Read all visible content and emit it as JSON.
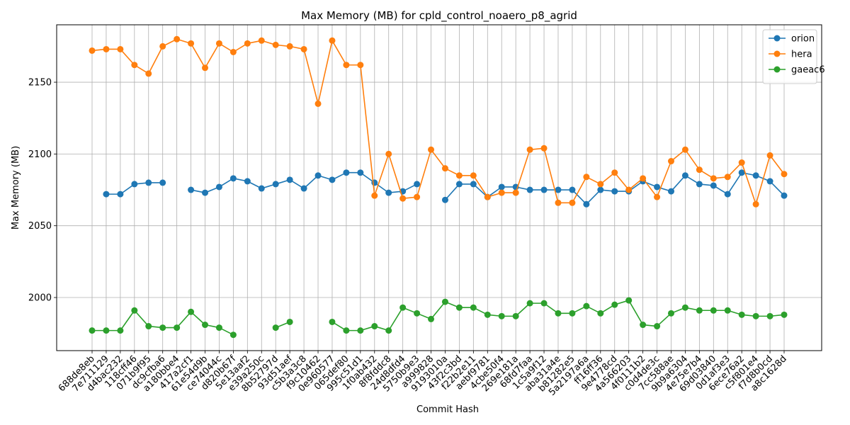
{
  "chart_data": {
    "type": "line",
    "title": "Max Memory (MB) for cpld_control_noaero_p8_agrid",
    "xlabel": "Commit Hash",
    "ylabel": "Max Memory (MB)",
    "ylim": [
      1963,
      2190
    ],
    "yticks": [
      2000,
      2050,
      2100,
      2150
    ],
    "grid": true,
    "legend_position": "top-right",
    "categories": [
      "688de8eb",
      "7e711129",
      "d4bac232",
      "118cff46",
      "071b9f95",
      "dc9cfba6",
      "a180bbe4",
      "417a2cf1",
      "61e54d9b",
      "ce74044c",
      "d820b67f",
      "5e13aaf2",
      "e39a250c",
      "8b52797d",
      "93d51aef",
      "c5b3a3c8",
      "f9c10462",
      "0e960577",
      "065def80",
      "995c51d1",
      "1f0ab432",
      "8f8fddc8",
      "24d8dfd4",
      "5750b9e3",
      "a999828",
      "9193010a",
      "43f2c3bd",
      "f22b2e11",
      "aebf9781",
      "4cbe50f4",
      "269e181a",
      "68fd7faa",
      "1c5a9f12",
      "aba31a4e",
      "b81282e5",
      "5a2197a6a",
      "ff16ff36",
      "9e4778cd",
      "4a566203",
      "4f0111b2",
      "c0d4de3c",
      "7cc588ae",
      "9b9a6304",
      "4e75e7b4",
      "69d03840",
      "0d1af3e3",
      "6ece76a2",
      "c5f801e4",
      "f7d8b0cd",
      "a8c1628d"
    ],
    "series": [
      {
        "name": "orion",
        "color": "#1f77b4",
        "values": [
          null,
          2072,
          2072,
          2079,
          2080,
          2080,
          null,
          2075,
          2073,
          2077,
          2083,
          2081,
          2076,
          2079,
          2082,
          2076,
          2085,
          2082,
          2087,
          2087,
          2080,
          2073,
          2074,
          2079,
          null,
          2068,
          2079,
          2079,
          2070,
          2077,
          2077,
          2075,
          2075,
          2075,
          2075,
          2065,
          2075,
          2074,
          2074,
          2081,
          2077,
          2074,
          2085,
          2079,
          2078,
          2072,
          2087,
          2085,
          2081,
          2071
        ]
      },
      {
        "name": "hera",
        "color": "#ff7f0e",
        "values": [
          2172,
          2173,
          2173,
          2162,
          2156,
          2175,
          2180,
          2177,
          2160,
          2177,
          2171,
          2177,
          2179,
          2176,
          2175,
          2173,
          2135,
          2179,
          2162,
          2162,
          2071,
          2100,
          2069,
          2070,
          2103,
          2090,
          2085,
          2085,
          2070,
          2073,
          2073,
          2103,
          2104,
          2066,
          2066,
          2084,
          2079,
          2087,
          2075,
          2083,
          2070,
          2095,
          2103,
          2089,
          2083,
          2084,
          2094,
          2065,
          2099,
          2086
        ]
      },
      {
        "name": "gaeac6",
        "color": "#2ca02c",
        "values": [
          1977,
          1977,
          1977,
          1991,
          1980,
          1979,
          1979,
          1990,
          1981,
          1979,
          1974,
          null,
          null,
          1979,
          1983,
          null,
          null,
          1983,
          1977,
          1977,
          1980,
          1977,
          1993,
          1989,
          1985,
          1997,
          1993,
          1993,
          1988,
          1987,
          1987,
          1996,
          1996,
          1989,
          1989,
          1994,
          1989,
          1995,
          1998,
          1981,
          1980,
          1989,
          1993,
          1991,
          1991,
          1991,
          1988,
          1987,
          1987,
          1988
        ]
      }
    ]
  }
}
